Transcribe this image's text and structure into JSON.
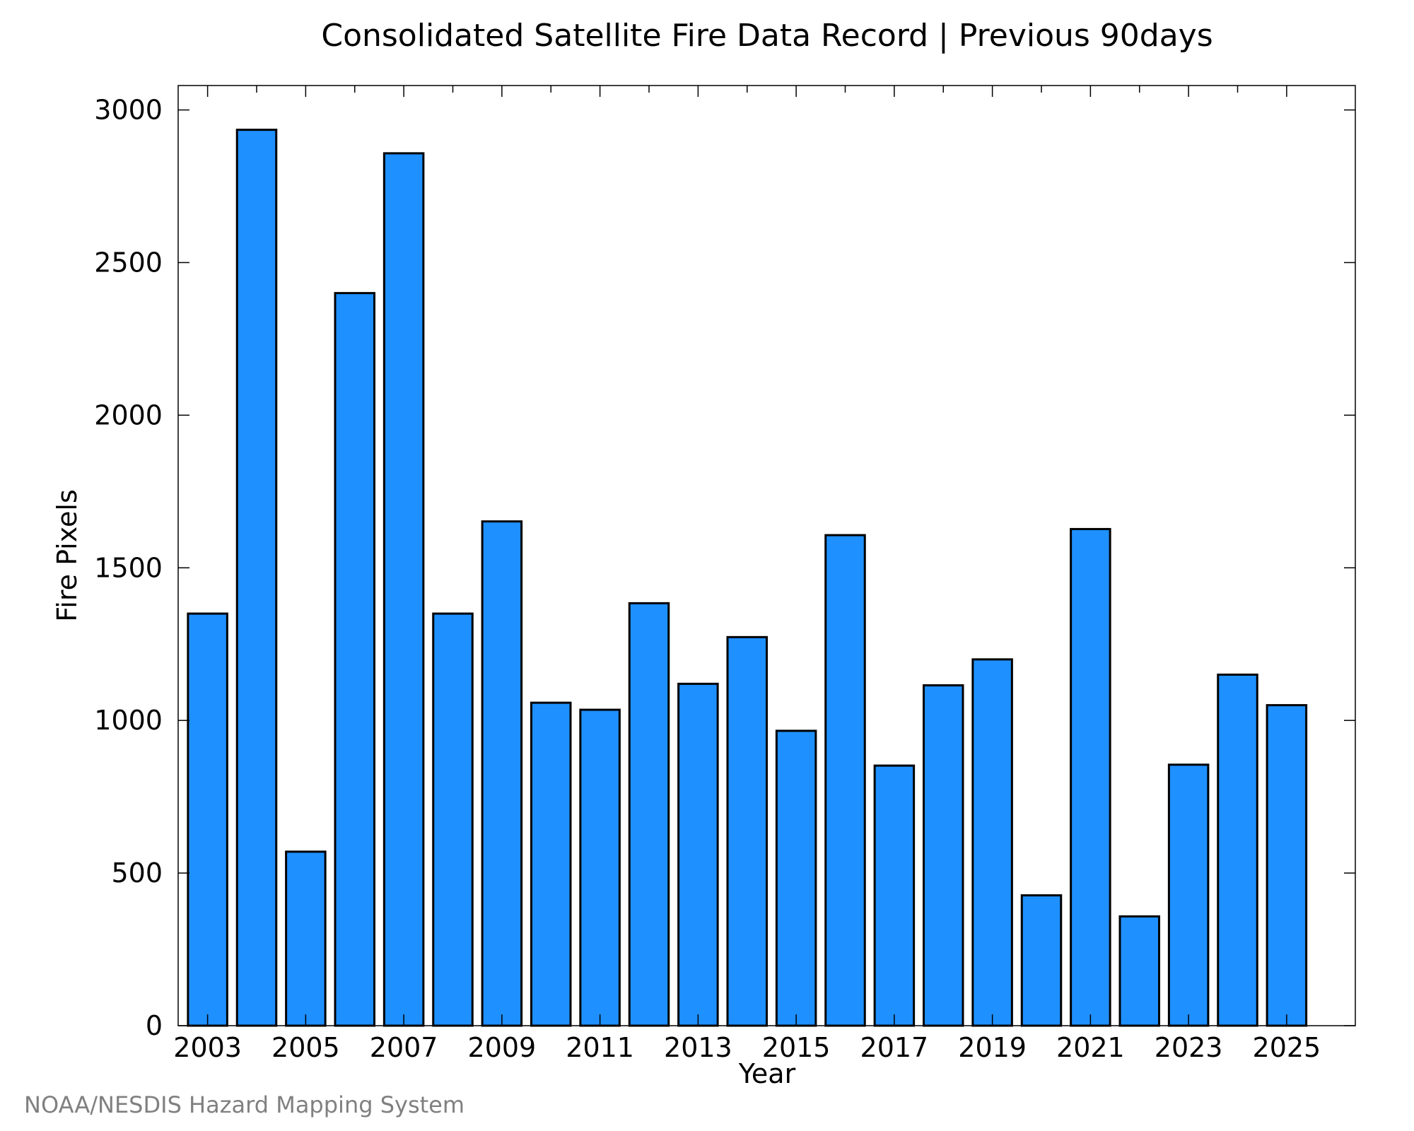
{
  "chart_data": {
    "type": "bar",
    "title": "Consolidated Satellite Fire Data Record | Previous 90days",
    "xlabel": "Year",
    "ylabel": "Fire Pixels",
    "credit": "NOAA/NESDIS Hazard Mapping System",
    "categories": [
      2003,
      2004,
      2005,
      2006,
      2007,
      2008,
      2009,
      2010,
      2011,
      2012,
      2013,
      2014,
      2015,
      2016,
      2017,
      2018,
      2019,
      2020,
      2021,
      2022,
      2023,
      2024,
      2025
    ],
    "values": [
      1350,
      2935,
      570,
      2400,
      2858,
      1350,
      1652,
      1058,
      1035,
      1384,
      1120,
      1273,
      966,
      1607,
      852,
      1115,
      1200,
      427,
      1627,
      358,
      855,
      1150,
      1050
    ],
    "xticks": [
      "2003",
      "2005",
      "2007",
      "2009",
      "2011",
      "2013",
      "2015",
      "2017",
      "2019",
      "2021",
      "2023",
      "2025"
    ],
    "yticks": [
      "0",
      "500",
      "1000",
      "1500",
      "2000",
      "2500",
      "3000"
    ],
    "xlim": [
      2002.4,
      2026.4
    ],
    "ylim": [
      0,
      3080
    ],
    "grid": false,
    "bar_color": "#1E90FF",
    "edge_color": "#000000"
  }
}
